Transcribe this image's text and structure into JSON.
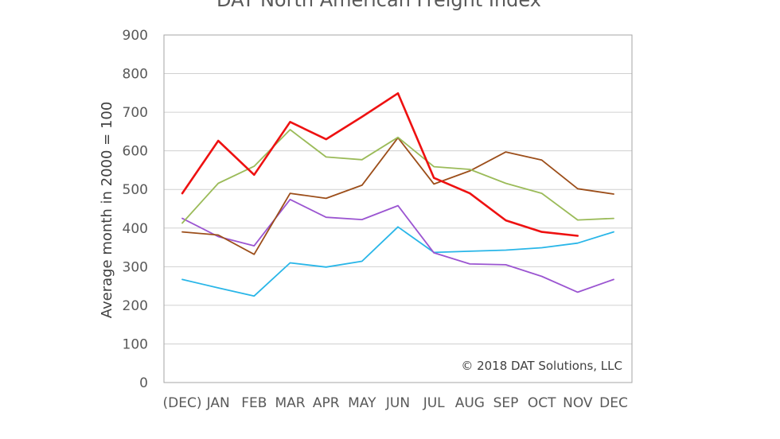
{
  "chart_data": {
    "type": "line",
    "title": "DAT North American Freight Index",
    "xlabel": "",
    "ylabel": "Average month in 2000 = 100",
    "ylim": [
      0,
      900
    ],
    "yticks": [
      "0",
      "100",
      "200",
      "300",
      "400",
      "500",
      "600",
      "700",
      "800",
      "900"
    ],
    "categories": [
      "(DEC)",
      "JAN",
      "FEB",
      "MAR",
      "APR",
      "MAY",
      "JUN",
      "JUL",
      "AUG",
      "SEP",
      "OCT",
      "NOV",
      "DEC"
    ],
    "grid": true,
    "annotation": "© 2018 DAT Solutions, LLC",
    "series": [
      {
        "name": "series-blue",
        "color": "#29b6e8",
        "width": 1.8,
        "values": [
          267,
          245,
          224,
          310,
          299,
          314,
          403,
          337,
          340,
          343,
          349,
          361,
          390
        ]
      },
      {
        "name": "series-purple",
        "color": "#9b55d1",
        "width": 1.8,
        "values": [
          425,
          378,
          354,
          474,
          428,
          422,
          458,
          336,
          307,
          305,
          275,
          234,
          267
        ]
      },
      {
        "name": "series-brown",
        "color": "#9c4e1a",
        "width": 1.8,
        "values": [
          390,
          382,
          332,
          490,
          477,
          511,
          634,
          514,
          548,
          597,
          576,
          502,
          488
        ]
      },
      {
        "name": "series-green",
        "color": "#9bbb59",
        "width": 1.8,
        "values": [
          413,
          516,
          560,
          655,
          584,
          577,
          635,
          559,
          552,
          516,
          490,
          421,
          425
        ]
      },
      {
        "name": "series-red",
        "color": "#ee1111",
        "width": 2.6,
        "values": [
          490,
          626,
          538,
          675,
          630,
          688,
          749,
          530,
          490,
          420,
          390,
          380,
          null
        ]
      }
    ]
  }
}
